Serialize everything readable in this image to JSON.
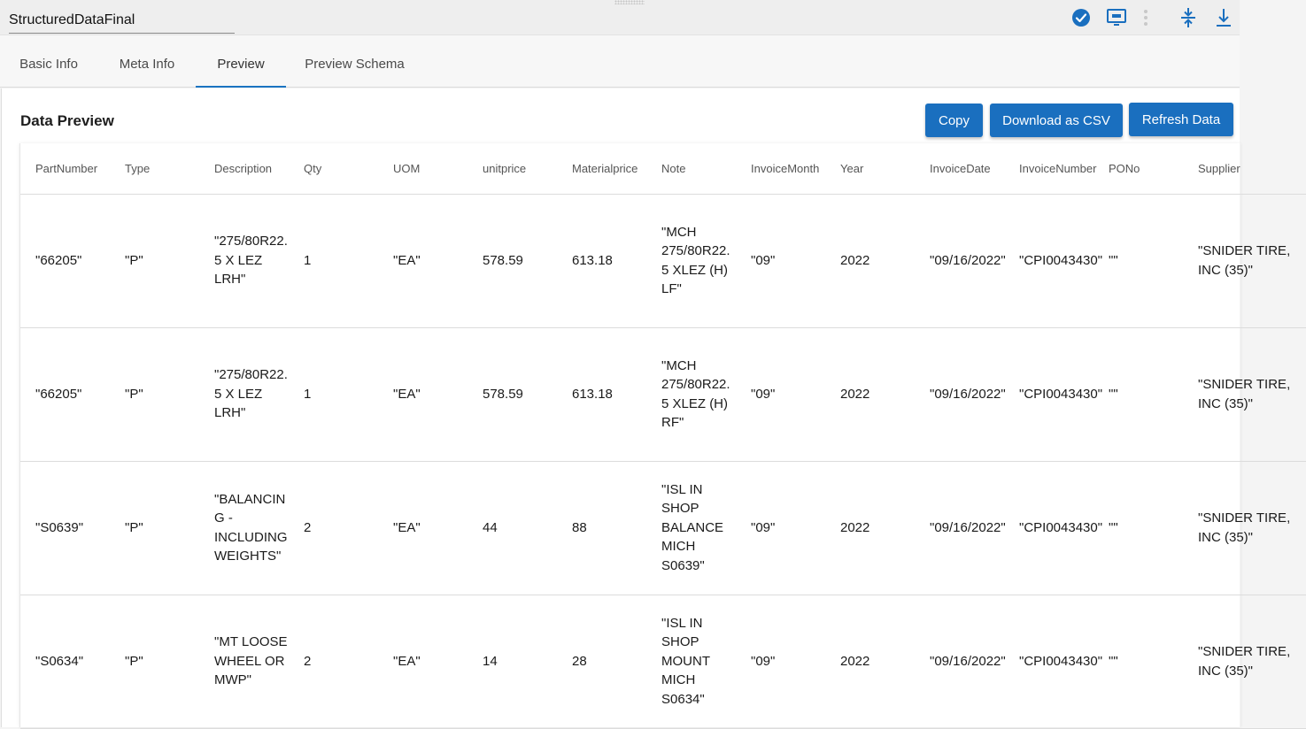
{
  "app": {
    "name": "StructuredDataFinal",
    "accent_color": "#1a6fbf"
  },
  "toolbar_icons": [
    "check-circle-icon",
    "monitor-icon",
    "more-vertical-icon",
    "compress-vertical-icon",
    "download-icon"
  ],
  "tabs": [
    {
      "label": "Basic Info",
      "active": false
    },
    {
      "label": "Meta Info",
      "active": false
    },
    {
      "label": "Preview",
      "active": true
    },
    {
      "label": "Preview Schema",
      "active": false
    }
  ],
  "preview": {
    "title": "Data Preview",
    "buttons": {
      "copy": "Copy",
      "download": "Download as CSV",
      "refresh": "Refresh Data"
    },
    "columns": [
      "PartNumber",
      "Type",
      "Description",
      "Qty",
      "UOM",
      "unitprice",
      "Materialprice",
      "Note",
      "InvoiceMonth",
      "Year",
      "InvoiceDate",
      "InvoiceNumber",
      "PONo",
      "Supplier"
    ],
    "rows": [
      [
        "\"66205\"",
        "\"P\"",
        "\"275/80R22.5 X LEZ LRH\"",
        "1",
        "\"EA\"",
        "578.59",
        "613.18",
        "\"MCH 275/80R22.5 XLEZ (H) LF\"",
        "\"09\"",
        "2022",
        "\"09/16/2022\"",
        "\"CPI0043430\"",
        "\"\"",
        "\"SNIDER TIRE, INC (35)\""
      ],
      [
        "\"66205\"",
        "\"P\"",
        "\"275/80R22.5 X LEZ LRH\"",
        "1",
        "\"EA\"",
        "578.59",
        "613.18",
        "\"MCH 275/80R22.5 XLEZ (H) RF\"",
        "\"09\"",
        "2022",
        "\"09/16/2022\"",
        "\"CPI0043430\"",
        "\"\"",
        "\"SNIDER TIRE, INC (35)\""
      ],
      [
        "\"S0639\"",
        "\"P\"",
        "\"BALANCING - INCLUDING WEIGHTS\"",
        "2",
        "\"EA\"",
        "44",
        "88",
        "\"ISL IN SHOP BALANCE MICH S0639\"",
        "\"09\"",
        "2022",
        "\"09/16/2022\"",
        "\"CPI0043430\"",
        "\"\"",
        "\"SNIDER TIRE, INC (35)\""
      ],
      [
        "\"S0634\"",
        "\"P\"",
        "\"MT LOOSE WHEEL OR MWP\"",
        "2",
        "\"EA\"",
        "14",
        "28",
        "\"ISL IN SHOP MOUNT MICH S0634\"",
        "\"09\"",
        "2022",
        "\"09/16/2022\"",
        "\"CPI0043430\"",
        "\"\"",
        "\"SNIDER TIRE, INC (35)\""
      ]
    ]
  }
}
